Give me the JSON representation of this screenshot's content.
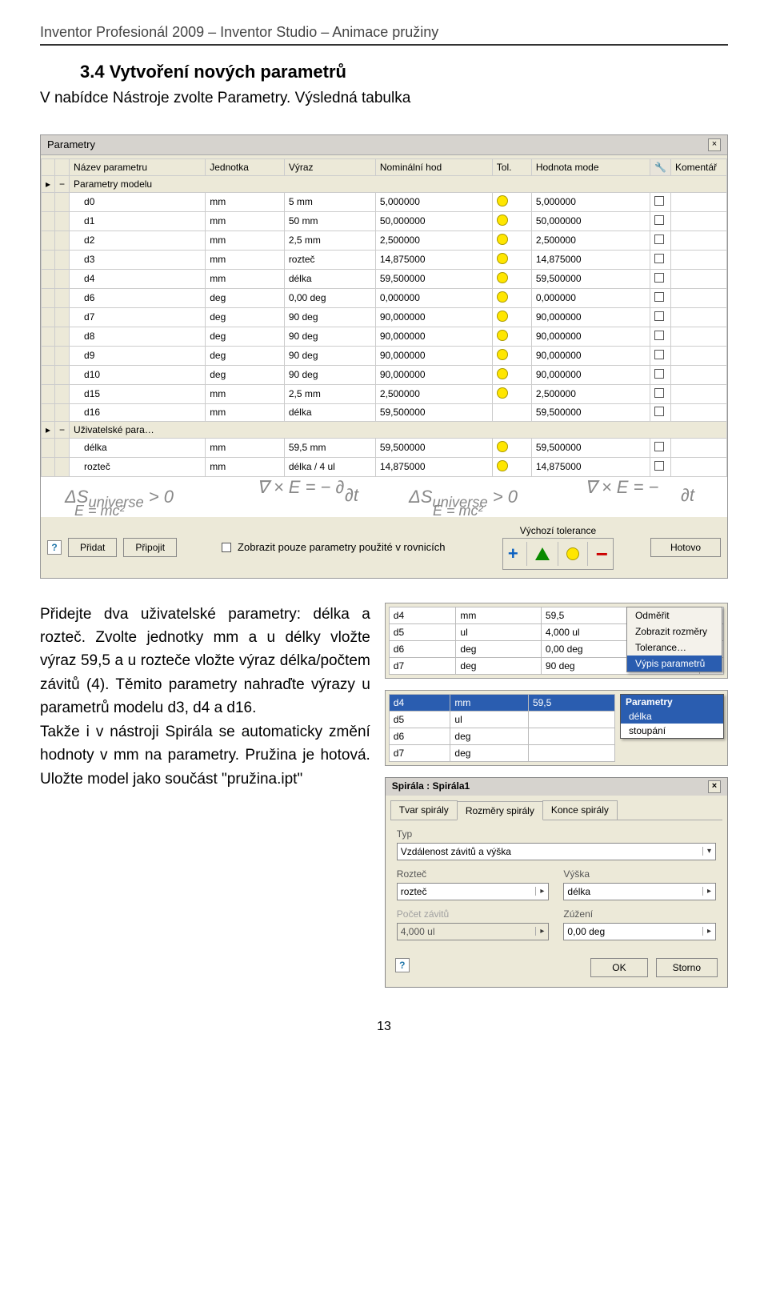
{
  "header": "Inventor Profesionál 2009 – Inventor Studio – Animace pružiny",
  "section": "3.4 Vytvoření nových parametrů",
  "intro": "V nabídce Nástroje zvolte Parametry. Výsledná tabulka",
  "paramsDialog": {
    "title": "Parametry",
    "headers": [
      "Název parametru",
      "Jednotka",
      "Výraz",
      "Nominální hod",
      "Tol.",
      "Hodnota mode",
      "",
      "Komentář"
    ],
    "groupModel": "Parametry modelu",
    "groupUser": "Uživatelské para…",
    "rowsModel": [
      {
        "name": "d0",
        "unit": "mm",
        "expr": "5 mm",
        "nom": "5,000000",
        "tol": true,
        "mode": "5,000000"
      },
      {
        "name": "d1",
        "unit": "mm",
        "expr": "50 mm",
        "nom": "50,000000",
        "tol": true,
        "mode": "50,000000"
      },
      {
        "name": "d2",
        "unit": "mm",
        "expr": "2,5 mm",
        "nom": "2,500000",
        "tol": true,
        "mode": "2,500000"
      },
      {
        "name": "d3",
        "unit": "mm",
        "expr": "rozteč",
        "nom": "14,875000",
        "tol": true,
        "mode": "14,875000"
      },
      {
        "name": "d4",
        "unit": "mm",
        "expr": "délka",
        "nom": "59,500000",
        "tol": true,
        "mode": "59,500000"
      },
      {
        "name": "d6",
        "unit": "deg",
        "expr": "0,00 deg",
        "nom": "0,000000",
        "tol": true,
        "mode": "0,000000"
      },
      {
        "name": "d7",
        "unit": "deg",
        "expr": "90 deg",
        "nom": "90,000000",
        "tol": true,
        "mode": "90,000000"
      },
      {
        "name": "d8",
        "unit": "deg",
        "expr": "90 deg",
        "nom": "90,000000",
        "tol": true,
        "mode": "90,000000"
      },
      {
        "name": "d9",
        "unit": "deg",
        "expr": "90 deg",
        "nom": "90,000000",
        "tol": true,
        "mode": "90,000000"
      },
      {
        "name": "d10",
        "unit": "deg",
        "expr": "90 deg",
        "nom": "90,000000",
        "tol": true,
        "mode": "90,000000"
      },
      {
        "name": "d15",
        "unit": "mm",
        "expr": "2,5 mm",
        "nom": "2,500000",
        "tol": true,
        "mode": "2,500000"
      },
      {
        "name": "d16",
        "unit": "mm",
        "expr": "délka",
        "nom": "59,500000",
        "tol": false,
        "mode": "59,500000"
      }
    ],
    "rowsUser": [
      {
        "name": "délka",
        "unit": "mm",
        "expr": "59,5 mm",
        "nom": "59,500000",
        "tol": true,
        "mode": "59,500000"
      },
      {
        "name": "rozteč",
        "unit": "mm",
        "expr": "délka / 4 ul",
        "nom": "14,875000",
        "tol": true,
        "mode": "14,875000"
      }
    ],
    "footer": {
      "checkLabel": "Zobrazit pouze parametry použité v rovnicích",
      "addLabel": "Přidat",
      "attachLabel": "Připojit",
      "defaultTolLabel": "Výchozí tolerance",
      "doneLabel": "Hotovo"
    }
  },
  "leftText": "Přidejte dva uživatelské para­metry: délka a rozteč. Zvolte jednotky mm a u délky vložte výraz 59,5 a u rozteče vložte výraz délka/počtem závitů (4). Těmito parametry nahraďte vý­razy u parametrů modelu d3, d4 a d16.\nTakže i v nástroji Spirála se au­tomaticky změní hodnoty v mm na parametry. Pružina je hoto­vá. Uložte model jako součást \"pružina.ipt\"",
  "miniGrid": {
    "rows": [
      {
        "name": "d4",
        "unit": "mm",
        "val": "59,5"
      },
      {
        "name": "d5",
        "unit": "ul",
        "val": "4,000 ul"
      },
      {
        "name": "d6",
        "unit": "deg",
        "val": "0,00 deg"
      },
      {
        "name": "d7",
        "unit": "deg",
        "val": "90 deg"
      }
    ],
    "selRow": {
      "name": "d4",
      "unit": "mm",
      "val": "59,5"
    },
    "subRows": [
      {
        "name": "d5",
        "unit": "ul"
      },
      {
        "name": "d6",
        "unit": "deg"
      },
      {
        "name": "d7",
        "unit": "deg"
      }
    ],
    "contextMenu": [
      "Odměřit",
      "Zobrazit rozměry",
      "Tolerance…",
      "Výpis parametrů"
    ],
    "contextHi": "Výpis parametrů",
    "dropdown": {
      "title": "Parametry",
      "items": [
        "délka",
        "stoupání"
      ],
      "sel": "délka"
    }
  },
  "spirala": {
    "title": "Spirála : Spirála1",
    "tabs": [
      "Tvar spirály",
      "Rozměry spirály",
      "Konce spirály"
    ],
    "activeTab": "Rozměry spirály",
    "typLabel": "Typ",
    "typValue": "Vzdálenost závitů a výška",
    "fields": {
      "roztecLabel": "Rozteč",
      "roztecValue": "rozteč",
      "vyskaLabel": "Výška",
      "vyskaValue": "délka",
      "pocetLabel": "Počet závitů",
      "pocetValue": "4,000 ul",
      "zuzeniLabel": "Zúžení",
      "zuzeniValue": "0,00 deg"
    },
    "buttons": {
      "ok": "OK",
      "storno": "Storno"
    }
  },
  "pageNumber": "13"
}
